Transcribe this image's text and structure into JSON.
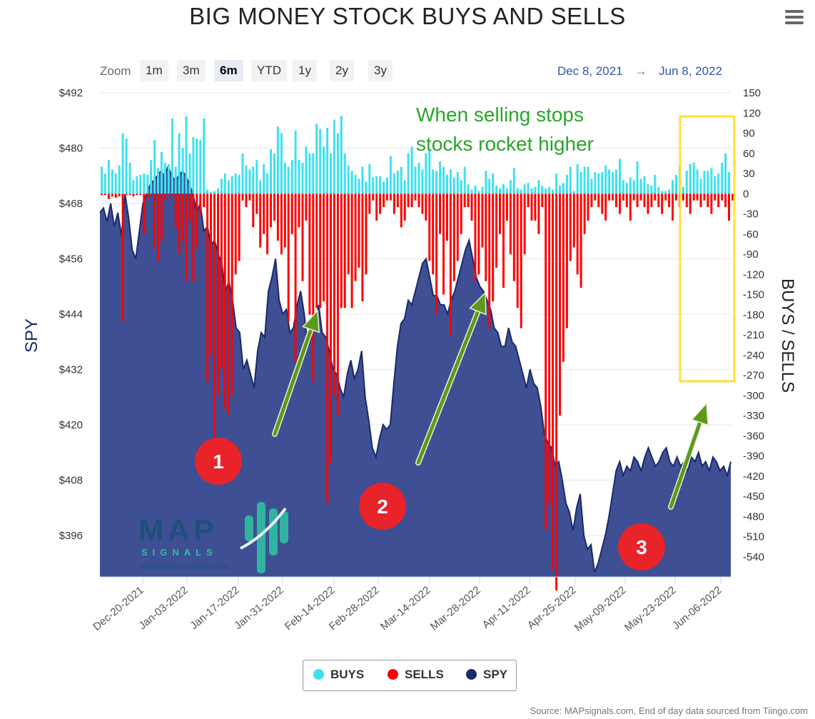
{
  "title": "BIG MONEY STOCK BUYS AND SELLS",
  "zoom": {
    "label": "Zoom",
    "buttons": [
      "1m",
      "3m",
      "6m",
      "YTD",
      "1y",
      "2y",
      "3y"
    ],
    "active": "6m"
  },
  "range": {
    "from": "Dec 8, 2021",
    "arrow": "→",
    "to": "Jun 8, 2022"
  },
  "annotation": [
    "When selling stops",
    "stocks rocket higher"
  ],
  "markers": [
    "1",
    "2",
    "3"
  ],
  "logo": {
    "name": "MAP",
    "sub": "SIGNALS",
    "tagline": "Tomorrow's top stocks today"
  },
  "legend": [
    {
      "label": "BUYS",
      "color": "#3ee0f0"
    },
    {
      "label": "SELLS",
      "color": "#ff0000"
    },
    {
      "label": "SPY",
      "color": "#1a2a6c"
    }
  ],
  "source": "Source: MAPsignals.com, End of day data sourced from Tiingo.com",
  "colors": {
    "buys": "#3ee0f0",
    "sells": "#ff0000",
    "spy_fill": "#3e4f94",
    "spy_line": "#1a2a6c",
    "annotation": "#2aa52a",
    "arrow": "#5c9a1a",
    "highlight": "#ffe033",
    "marker": "#e8232a"
  },
  "chart_data": {
    "type": "bar",
    "ylabel_left": "SPY",
    "ylabel_right": "BUYS / SELLS",
    "y_left_ticks": [
      "$492",
      "$480",
      "$468",
      "$456",
      "$444",
      "$432",
      "$420",
      "$408",
      "$396"
    ],
    "y_left_range": [
      387,
      492
    ],
    "y_right_ticks": [
      "150",
      "120",
      "90",
      "60",
      "30",
      "0",
      "-30",
      "-60",
      "-90",
      "-120",
      "-150",
      "-180",
      "-210",
      "-240",
      "-270",
      "-300",
      "-330",
      "-360",
      "-390",
      "-420",
      "-450",
      "-480",
      "-510",
      "-540"
    ],
    "y_right_range": [
      -570,
      150
    ],
    "x_ticks": [
      "Dec-20-2021",
      "Jan-03-2022",
      "Jan-17-2022",
      "Jan-31-2022",
      "Feb-14-2022",
      "Feb-28-2022",
      "Mar-14-2022",
      "Mar-28-2022",
      "Apr-11-2022",
      "Apr-25-2022",
      "May-09-2022",
      "May-23-2022",
      "Jun-06-2022"
    ],
    "buys": [
      40,
      30,
      50,
      36,
      30,
      42,
      90,
      82,
      46,
      20,
      26,
      28,
      30,
      28,
      50,
      80,
      38,
      62,
      46,
      44,
      112,
      40,
      90,
      68,
      115,
      60,
      84,
      82,
      80,
      112,
      6,
      2,
      4,
      8,
      22,
      30,
      20,
      26,
      30,
      28,
      60,
      42,
      36,
      40,
      50,
      20,
      44,
      30,
      66,
      60,
      100,
      90,
      46,
      40,
      50,
      94,
      50,
      46,
      70,
      60,
      60,
      104,
      96,
      70,
      98,
      60,
      110,
      90,
      116,
      60,
      42,
      34,
      28,
      22,
      40,
      18,
      44,
      24,
      26,
      26,
      18,
      24,
      56,
      30,
      34,
      40,
      20,
      60,
      70,
      40,
      46,
      36,
      60,
      64,
      36,
      34,
      48,
      40,
      28,
      36,
      24,
      32,
      20,
      40,
      14,
      6,
      12,
      4,
      10,
      34,
      22,
      30,
      12,
      8,
      14,
      8,
      20,
      38,
      8,
      6,
      14,
      16,
      8,
      10,
      20,
      12,
      8,
      10,
      6,
      30,
      12,
      16,
      28,
      40,
      4,
      44,
      32,
      40,
      40,
      22,
      32,
      30,
      32,
      42,
      36,
      32,
      36,
      52,
      20,
      16,
      24,
      20,
      48,
      22,
      26,
      14,
      12,
      28,
      10,
      4,
      4,
      6,
      20,
      28,
      42,
      10,
      34,
      44,
      46,
      36,
      22,
      34,
      34,
      38,
      26,
      30,
      46,
      60,
      32
    ],
    "sells": [
      -2,
      -2,
      -8,
      -4,
      -6,
      -4,
      -190,
      -2,
      -2,
      -4,
      -2,
      -2,
      -60,
      -6,
      -2,
      -80,
      -100,
      -70,
      -8,
      -2,
      -4,
      -50,
      -90,
      -70,
      -130,
      -40,
      -130,
      -80,
      -30,
      -20,
      -280,
      -240,
      -420,
      -300,
      -260,
      -320,
      -330,
      -300,
      -120,
      -100,
      -10,
      -20,
      -10,
      -50,
      -30,
      -80,
      -60,
      -90,
      -50,
      -40,
      -70,
      -90,
      -80,
      -190,
      -60,
      -250,
      -50,
      -130,
      -40,
      -180,
      -280,
      -170,
      -170,
      -160,
      -460,
      -400,
      -300,
      -330,
      -170,
      -170,
      -120,
      -170,
      -130,
      -110,
      -160,
      -120,
      -30,
      -10,
      -40,
      -30,
      -20,
      -10,
      -10,
      -30,
      -20,
      -50,
      -40,
      -20,
      -20,
      -10,
      -20,
      -30,
      -40,
      -100,
      -120,
      -180,
      -60,
      -150,
      -70,
      -210,
      -130,
      -100,
      -60,
      -20,
      -20,
      -40,
      -130,
      -120,
      -80,
      -130,
      -200,
      -160,
      -110,
      -60,
      -140,
      -40,
      -90,
      -130,
      -170,
      -200,
      -90,
      -20,
      -40,
      -40,
      -60,
      -20,
      -500,
      -460,
      -560,
      -590,
      -330,
      -250,
      -200,
      -100,
      -80,
      -120,
      -140,
      -60,
      -40,
      -20,
      -10,
      -20,
      -30,
      -40,
      -10,
      -10,
      -20,
      -30,
      -10,
      -20,
      -40,
      -10,
      -20,
      -10,
      -20,
      -30,
      -20,
      -10,
      -20,
      -30,
      -10,
      -20,
      -40,
      -10,
      -20,
      -10,
      -20,
      -30,
      -10,
      -10,
      -20,
      -10,
      -20,
      -30,
      -10,
      -20,
      -10,
      -20,
      -40,
      -10
    ],
    "spy": [
      466,
      467,
      464,
      468,
      463,
      466,
      461,
      470,
      465,
      458,
      456,
      462,
      468,
      470,
      472,
      473,
      474,
      475,
      474,
      476,
      474,
      473,
      474,
      475,
      474,
      472,
      470,
      466,
      468,
      462,
      463,
      459,
      460,
      457,
      455,
      449,
      451,
      447,
      441,
      440,
      432,
      434,
      431,
      428,
      436,
      440,
      439,
      449,
      452,
      456,
      447,
      444,
      445,
      440,
      441,
      446,
      449,
      444,
      437,
      439,
      441,
      446,
      440,
      439,
      436,
      432,
      431,
      428,
      426,
      431,
      434,
      430,
      432,
      436,
      426,
      421,
      415,
      413,
      417,
      420,
      419,
      420,
      429,
      437,
      442,
      443,
      447,
      446,
      449,
      452,
      455,
      456,
      452,
      448,
      448,
      446,
      446,
      444,
      447,
      449,
      452,
      455,
      458,
      460,
      456,
      452,
      450,
      449,
      447,
      445,
      441,
      440,
      437,
      437,
      441,
      438,
      437,
      434,
      431,
      428,
      432,
      429,
      428,
      424,
      418,
      416,
      415,
      411,
      412,
      408,
      403,
      401,
      397,
      402,
      405,
      396,
      393,
      394,
      388,
      390,
      393,
      396,
      400,
      405,
      410,
      412,
      409,
      411,
      410,
      413,
      412,
      410,
      413,
      415,
      413,
      411,
      412,
      414,
      415,
      412,
      411,
      413,
      411,
      412,
      410,
      413,
      412,
      414,
      411,
      412,
      410,
      413,
      412,
      410,
      411,
      409,
      412
    ]
  }
}
